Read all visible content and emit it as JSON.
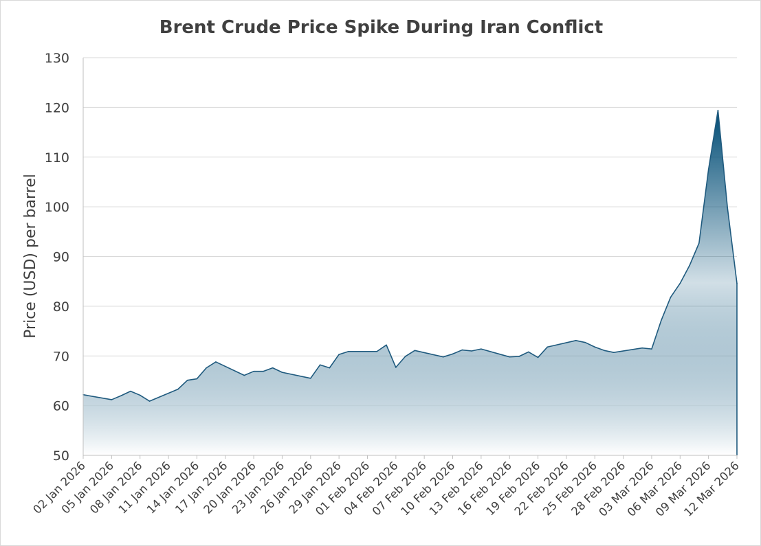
{
  "chart_data": {
    "type": "area",
    "title": "Brent Crude Price Spike During Iran Conflict",
    "xlabel": "",
    "ylabel": "Price (USD) per barrel",
    "ylim": [
      50,
      130
    ],
    "yticks": [
      50,
      60,
      70,
      80,
      90,
      100,
      110,
      120,
      130
    ],
    "grid": true,
    "legend": "none",
    "colors": {
      "line": "#1f5a7e",
      "fill_top": "#004c75",
      "fill_bottom": "#ffffff",
      "grid": "#d9d9d9",
      "text": "#404040"
    },
    "xticks": [
      "02 Jan 2026",
      "05 Jan 2026",
      "08 Jan 2026",
      "11 Jan 2026",
      "14 Jan 2026",
      "17 Jan 2026",
      "20 Jan 2026",
      "23 Jan 2026",
      "26 Jan 2026",
      "29 Jan 2026",
      "01 Feb 2026",
      "04 Feb 2026",
      "07 Feb 2026",
      "10 Feb 2026",
      "13 Feb 2026",
      "16 Feb 2026",
      "19 Feb 2026",
      "22 Feb 2026",
      "25 Feb 2026",
      "28 Feb 2026",
      "03 Mar 2026",
      "06 Mar 2026",
      "09 Mar 2026",
      "12 Mar 2026"
    ],
    "x": [
      "2026-01-02",
      "2026-01-05",
      "2026-01-06",
      "2026-01-07",
      "2026-01-08",
      "2026-01-09",
      "2026-01-12",
      "2026-01-13",
      "2026-01-14",
      "2026-01-15",
      "2026-01-16",
      "2026-01-19",
      "2026-01-20",
      "2026-01-21",
      "2026-01-22",
      "2026-01-23",
      "2026-01-26",
      "2026-01-27",
      "2026-01-28",
      "2026-01-29",
      "2026-01-30",
      "2026-02-02",
      "2026-02-03",
      "2026-02-04",
      "2026-02-05",
      "2026-02-06",
      "2026-02-09",
      "2026-02-10",
      "2026-02-11",
      "2026-02-12",
      "2026-02-13",
      "2026-02-16",
      "2026-02-17",
      "2026-02-18",
      "2026-02-19",
      "2026-02-20",
      "2026-02-23",
      "2026-02-24",
      "2026-02-25",
      "2026-02-26",
      "2026-02-27",
      "2026-03-02",
      "2026-03-03",
      "2026-03-04",
      "2026-03-05",
      "2026-03-06",
      "2026-03-07",
      "2026-03-08",
      "2026-03-09",
      "2026-03-10",
      "2026-03-11",
      "2026-03-12"
    ],
    "values": [
      62.2,
      61.2,
      62.0,
      62.9,
      62.1,
      60.9,
      63.3,
      65.1,
      65.4,
      67.6,
      68.8,
      66.1,
      66.9,
      66.9,
      67.6,
      66.7,
      65.5,
      68.2,
      67.6,
      70.3,
      70.9,
      70.9,
      72.2,
      67.7,
      69.9,
      71.1,
      69.8,
      70.4,
      71.2,
      71.0,
      71.4,
      69.8,
      69.9,
      70.8,
      69.7,
      71.8,
      73.1,
      72.7,
      71.8,
      71.1,
      70.7,
      71.6,
      71.4,
      77.1,
      81.8,
      84.6,
      88.2,
      92.7,
      107.5,
      119.4,
      99.8,
      84.6
    ]
  }
}
